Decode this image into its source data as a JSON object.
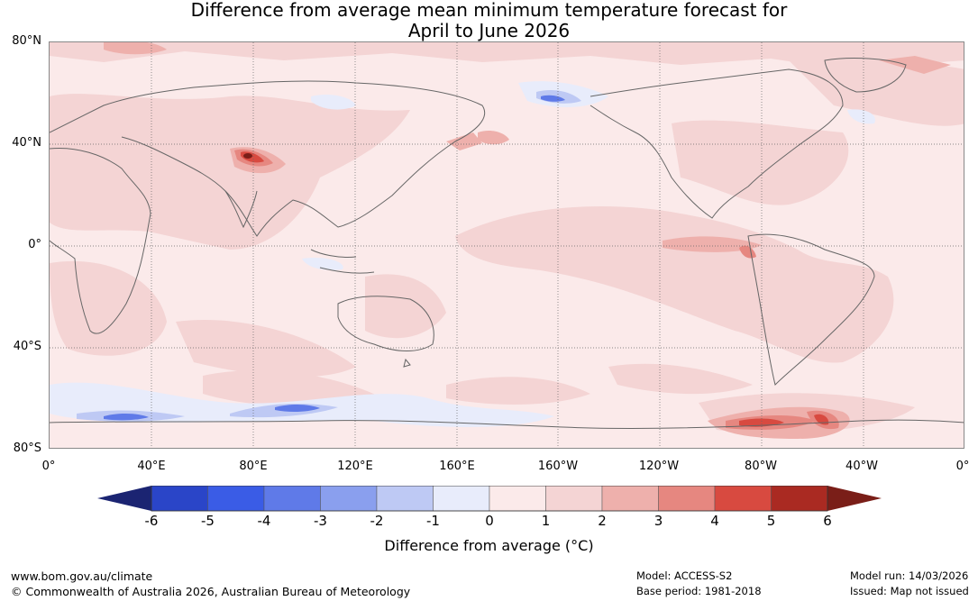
{
  "title": {
    "line1": "Difference from average mean minimum temperature forecast for",
    "line2": "April to June 2026"
  },
  "map": {
    "lat_labels": [
      "80°N",
      "40°N",
      "0°",
      "40°S",
      "80°S"
    ],
    "lon_labels": [
      "0°",
      "40°E",
      "80°E",
      "120°E",
      "160°E",
      "160°W",
      "120°W",
      "80°W",
      "40°W",
      "0°"
    ]
  },
  "colorbar": {
    "ticks": [
      "-6",
      "-5",
      "-4",
      "-3",
      "-2",
      "-1",
      "0",
      "1",
      "2",
      "3",
      "4",
      "5",
      "6"
    ],
    "colors": [
      "#233290",
      "#2a45c8",
      "#3a5ce6",
      "#5f7ae8",
      "#8a9fee",
      "#bec9f4",
      "#e8ecfb",
      "#fbeaea",
      "#f4d4d4",
      "#eeb0ac",
      "#e68780",
      "#d84a40",
      "#aa2a22"
    ],
    "under_color": "#1b2472",
    "over_color": "#7a1e18",
    "label": "Difference from average (°C)"
  },
  "footer": {
    "url": "www.bom.gov.au/climate",
    "copyright": "© Commonwealth of Australia 2026, Australian Bureau of Meteorology",
    "model": "Model: ACCESS-S2",
    "base_period": "Base period: 1981-2018",
    "model_run": "Model run: 14/03/2026",
    "issued": "Issued: Map not issued"
  }
}
